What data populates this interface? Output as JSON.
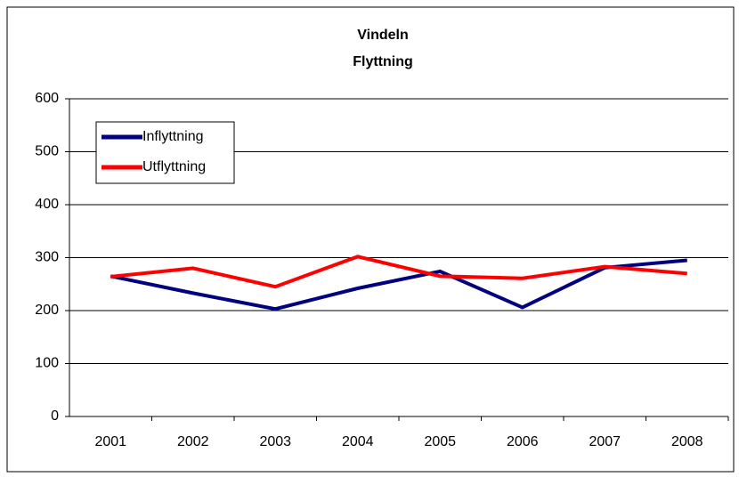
{
  "chart_data": {
    "type": "line",
    "title": "Vindeln",
    "subtitle": "Flyttning",
    "categories": [
      "2001",
      "2002",
      "2003",
      "2004",
      "2005",
      "2006",
      "2007",
      "2008"
    ],
    "series": [
      {
        "name": "Inflyttning",
        "color": "#000080",
        "values": [
          265,
          233,
          203,
          242,
          274,
          206,
          281,
          295
        ]
      },
      {
        "name": "Utflyttning",
        "color": "#ff0000",
        "values": [
          264,
          280,
          245,
          302,
          265,
          261,
          283,
          270
        ]
      }
    ],
    "ylim": [
      0,
      600
    ],
    "yticks": [
      0,
      100,
      200,
      300,
      400,
      500,
      600
    ],
    "grid": true,
    "legend": "upper-left"
  }
}
